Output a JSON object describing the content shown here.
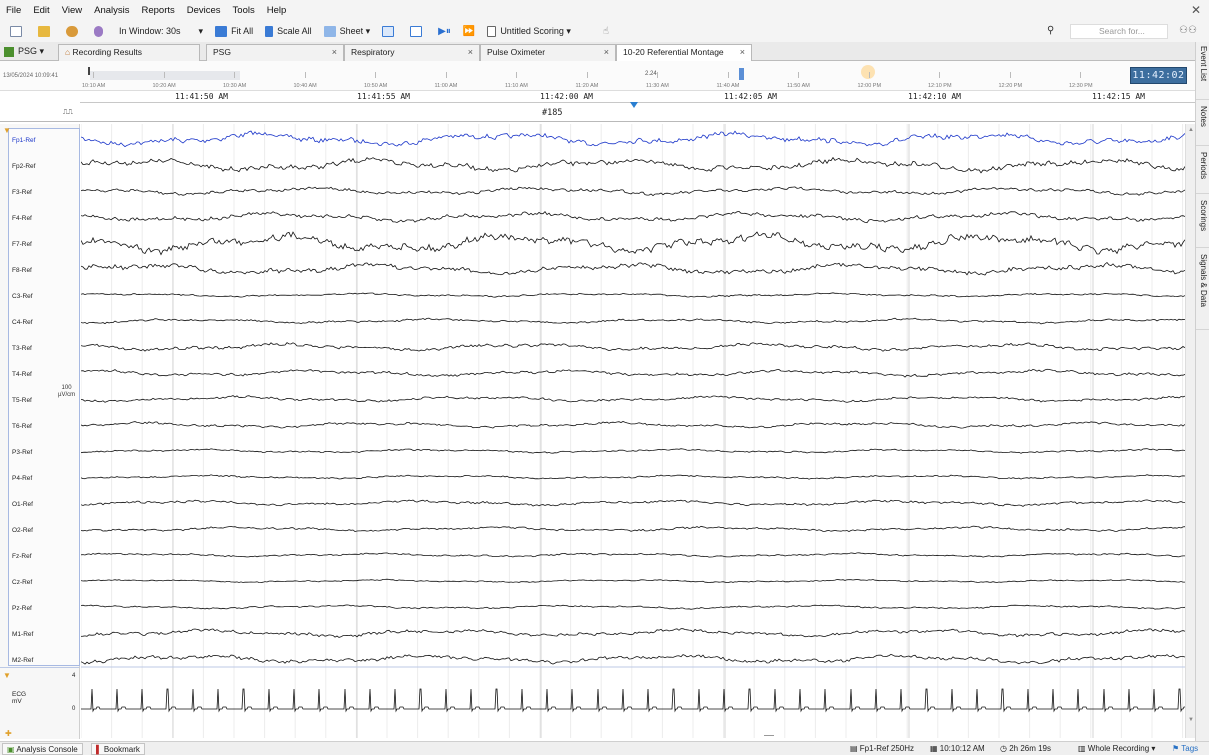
{
  "menu": [
    "File",
    "Edit",
    "View",
    "Analysis",
    "Reports",
    "Devices",
    "Tools",
    "Help"
  ],
  "toolbar": {
    "window_label": "In Window: 30s",
    "fit_all": "Fit All",
    "scale_all": "Scale All",
    "sheet": "Sheet ▾",
    "scoring": "Untitled Scoring ▾",
    "search_placeholder": "Search for..."
  },
  "tabs": {
    "psg_button": "PSG ▾",
    "items": [
      {
        "label": "Recording Results",
        "closable": false
      },
      {
        "label": "PSG",
        "closable": true
      },
      {
        "label": "Respiratory",
        "closable": true
      },
      {
        "label": "Pulse Oximeter",
        "closable": true
      },
      {
        "label": "10-20 Referential Montage",
        "closable": true
      }
    ]
  },
  "overview": {
    "start_label": "13/05/2024 10:09:41",
    "ticks": [
      "10:10 AM",
      "10:20 AM",
      "10:30 AM",
      "10:40 AM",
      "10:50 AM",
      "11:00 AM",
      "11:10 AM",
      "11:20 AM",
      "11:30 AM",
      "11:40 AM",
      "11:50 AM",
      "12:00 PM",
      "12:10 PM",
      "12:20 PM",
      "12:30 PM"
    ],
    "mid_label": "2.24",
    "clock": "11:42:02"
  },
  "time_axis": [
    "11:41:50 AM",
    "11:41:55 AM",
    "11:42:00 AM",
    "11:42:05 AM",
    "11:42:10 AM",
    "11:42:15 AM"
  ],
  "epoch_label": "#185",
  "channels": [
    "Fp1-Ref",
    "Fp2-Ref",
    "F3-Ref",
    "F4-Ref",
    "F7-Ref",
    "F8-Ref",
    "C3-Ref",
    "C4-Ref",
    "T3-Ref",
    "T4-Ref",
    "T5-Ref",
    "T6-Ref",
    "P3-Ref",
    "P4-Ref",
    "O1-Ref",
    "O2-Ref",
    "Fz-Ref",
    "Cz-Ref",
    "Pz-Ref",
    "M1-Ref",
    "M2-Ref"
  ],
  "scale_label": {
    "value": "100",
    "unit": "µV/cm"
  },
  "ecg": {
    "name": "ECG",
    "unit": "mV",
    "max": "4",
    "min": "0"
  },
  "dock": [
    "Event List",
    "Notes",
    "Periods",
    "Scorings",
    "Signals & Data"
  ],
  "status": {
    "analysis_console": "Analysis Console",
    "bookmark": "Bookmark",
    "channel_rate": "Fp1-Ref 250Hz",
    "time": "10:10:12 AM",
    "duration": "2h 26m 19s",
    "view_mode": "Whole Recording",
    "tags": "Tags"
  },
  "colors": {
    "selected_channel": "#1a35c9",
    "trace": "#111111",
    "clock_bg": "#3d6e9e"
  }
}
